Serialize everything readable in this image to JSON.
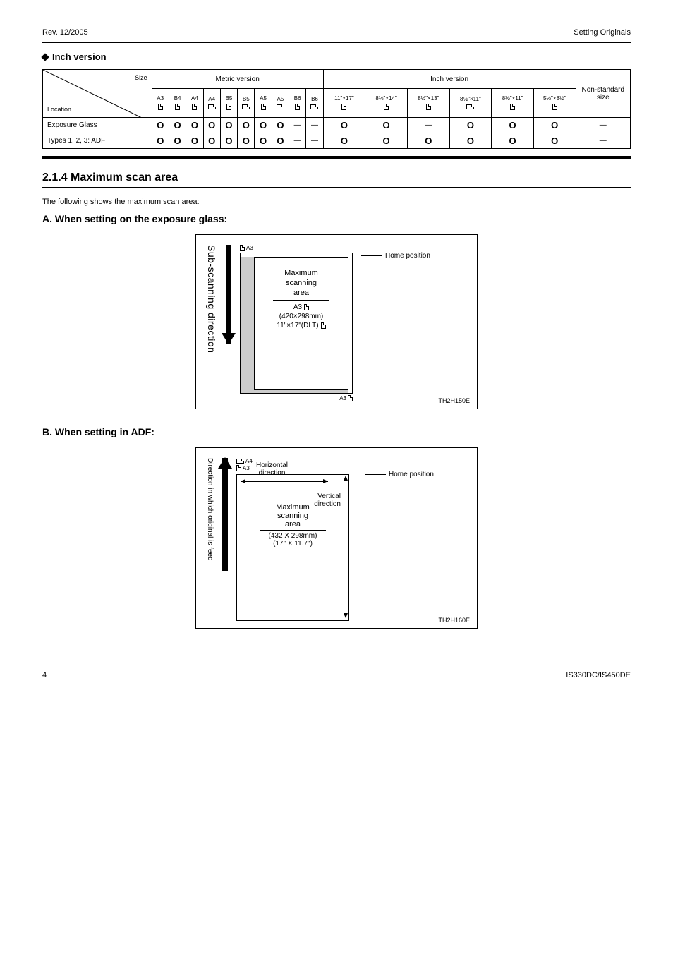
{
  "header": {
    "rev_left": "Rev. 12/2005",
    "section_label": "Setting Originals",
    "bullet_title": "Inch version"
  },
  "table": {
    "diag_upper": "Size",
    "diag_lower": "Location",
    "group_metric": "Metric version",
    "group_inch": "Inch version",
    "group_non_standard": "Non-standard size",
    "metric_sizes": [
      "A3",
      "B4",
      "A4",
      "A4",
      "B5",
      "B5",
      "A5",
      "A5",
      "B6",
      "B6"
    ],
    "metric_orients": [
      "P",
      "P",
      "P",
      "L",
      "P",
      "L",
      "P",
      "L",
      "P",
      "L"
    ],
    "inch_sizes": [
      "11\"×17\"",
      "8½\"×14\"",
      "8½\"×13\"",
      "8½\"×11\"",
      "8½\"×11\"",
      "5½\"×8½\""
    ],
    "inch_orients": [
      "P",
      "P",
      "P",
      "L",
      "P",
      "P"
    ],
    "rows": [
      {
        "label": "Exposure Glass",
        "metric": [
          "O",
          "O",
          "O",
          "O",
          "O",
          "O",
          "O",
          "O",
          "—",
          "—"
        ],
        "inch": [
          "O",
          "O",
          "—",
          "O",
          "O",
          "O"
        ],
        "ns": "—"
      },
      {
        "label": "Types 1, 2, 3: ADF",
        "metric": [
          "O",
          "O",
          "O",
          "O",
          "O",
          "O",
          "O",
          "O",
          "—",
          "—"
        ],
        "inch": [
          "O",
          "O",
          "O",
          "O",
          "O",
          "O"
        ],
        "ns": "—"
      }
    ]
  },
  "section": {
    "num_title": "2.1.4 Maximum scan area",
    "intro": "The following shows the maximum scan area:",
    "a_title": "A. When setting on the exposure glass:",
    "b_title": "B. When setting in ADF:"
  },
  "fig1": {
    "vlabel": "Sub-scanning direction",
    "top_tag": "A3",
    "lines": [
      "Maximum",
      "scanning",
      "area"
    ],
    "sub1": "A3",
    "sub2": "(420×298mm)",
    "sub3": "11\"×17\"(DLT)",
    "right_tag": "A3",
    "home": "Home position",
    "code": "TH2H150E"
  },
  "fig2": {
    "vlabel": "Direction in which original is feed",
    "top_tag1": "A4",
    "top_tag2": "A3",
    "h_dir": "Horizontal\ndirection",
    "v_dir": "Vertical\ndirection",
    "lines": [
      "Maximum",
      "scanning",
      "area"
    ],
    "sub1": "(432 X 298mm)",
    "sub2": "(17\" X 11.7\")",
    "home": "Home position",
    "code": "TH2H160E"
  },
  "footer": {
    "pg": "4",
    "model": "IS330DC/IS450DE"
  }
}
